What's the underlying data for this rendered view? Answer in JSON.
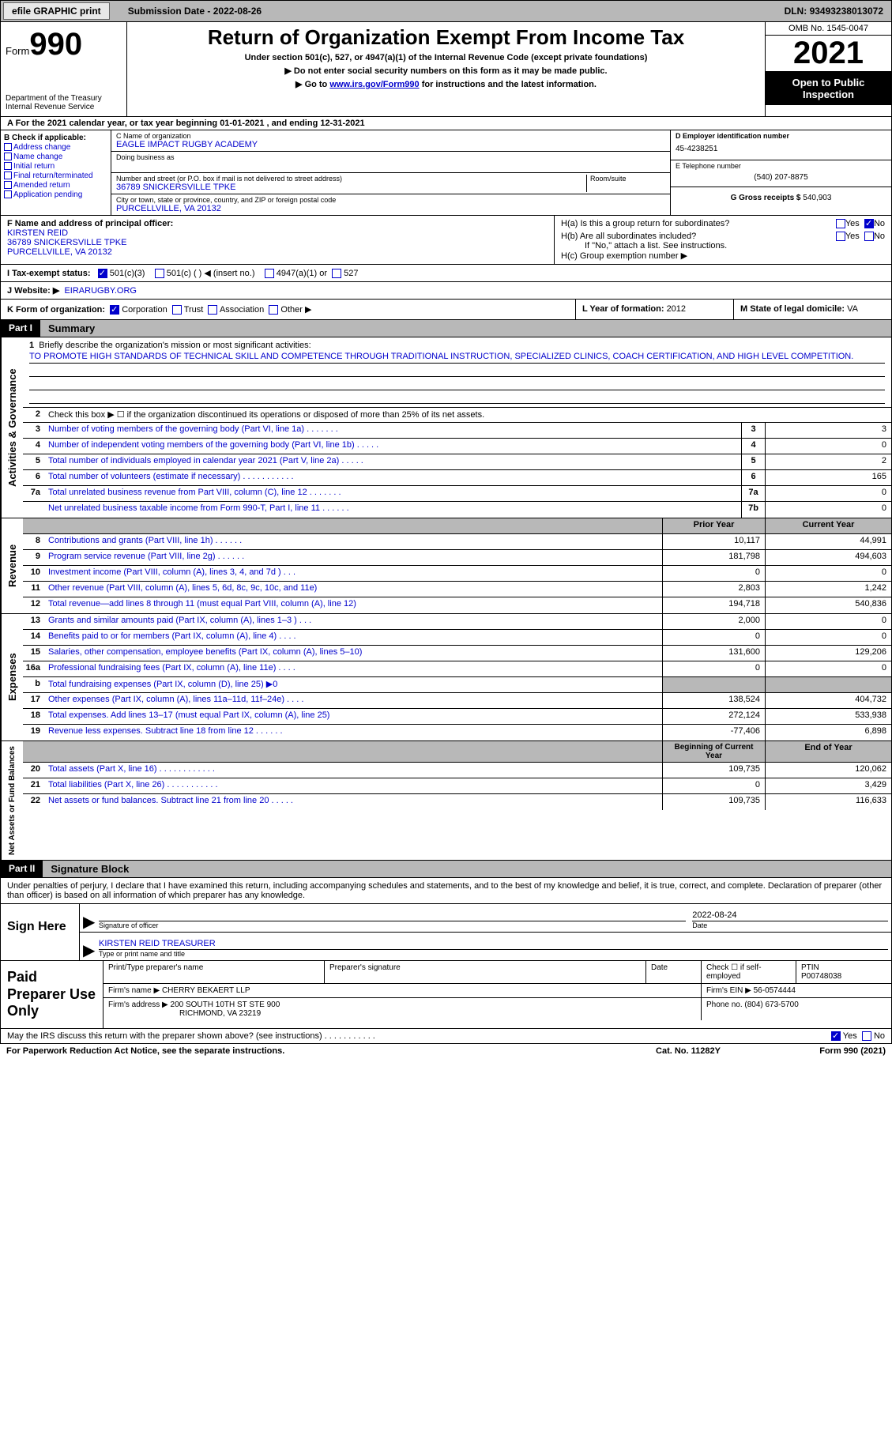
{
  "topbar": {
    "efile_btn": "efile GRAPHIC print",
    "sub_date_label": "Submission Date - ",
    "sub_date": "2022-08-26",
    "dln_label": "DLN: ",
    "dln": "93493238013072"
  },
  "header": {
    "form_label": "Form",
    "form_num": "990",
    "dept": "Department of the Treasury\nInternal Revenue Service",
    "title": "Return of Organization Exempt From Income Tax",
    "sub1": "Under section 501(c), 527, or 4947(a)(1) of the Internal Revenue Code (except private foundations)",
    "sub2": "▶ Do not enter social security numbers on this form as it may be made public.",
    "sub3_pre": "▶ Go to ",
    "sub3_link": "www.irs.gov/Form990",
    "sub3_post": " for instructions and the latest information.",
    "omb": "OMB No. 1545-0047",
    "year": "2021",
    "open_pub": "Open to Public Inspection"
  },
  "line_a": "A   For the 2021 calendar year, or tax year beginning 01-01-2021    , and ending 12-31-2021",
  "col_b": {
    "hdr": "B Check if applicable:",
    "items": [
      "Address change",
      "Name change",
      "Initial return",
      "Final return/terminated",
      "Amended return",
      "Application pending"
    ]
  },
  "col_c": {
    "name_lbl": "C Name of organization",
    "name_val": "EAGLE IMPACT RUGBY ACADEMY",
    "dba_lbl": "Doing business as",
    "addr_lbl": "Number and street (or P.O. box if mail is not delivered to street address)",
    "room_lbl": "Room/suite",
    "addr_val": "36789 SNICKERSVILLE TPKE",
    "city_lbl": "City or town, state or province, country, and ZIP or foreign postal code",
    "city_val": "PURCELLVILLE, VA  20132"
  },
  "col_d": {
    "ein_lbl": "D Employer identification number",
    "ein_val": "45-4238251",
    "tel_lbl": "E Telephone number",
    "tel_val": "(540) 207-8875",
    "gross_lbl": "G Gross receipts $ ",
    "gross_val": "540,903"
  },
  "row_f": {
    "lbl": "F Name and address of principal officer:",
    "name": "KIRSTEN REID",
    "addr1": "36789 SNICKERSVILLE TPKE",
    "addr2": "PURCELLVILLE, VA  20132"
  },
  "row_h": {
    "ha": "H(a)  Is this a group return for subordinates?",
    "hb": "H(b)  Are all subordinates included?",
    "hb_note": "If \"No,\" attach a list. See instructions.",
    "hc": "H(c)  Group exemption number ▶",
    "yes": "Yes",
    "no": "No"
  },
  "row_i": {
    "lbl": "I   Tax-exempt status:",
    "opt1": "501(c)(3)",
    "opt2": "501(c) (  ) ◀ (insert no.)",
    "opt3": "4947(a)(1) or",
    "opt4": "527"
  },
  "row_j": {
    "lbl": "J   Website: ▶",
    "val": "EIRARUGBY.ORG"
  },
  "row_k": {
    "lbl": "K Form of organization:",
    "opts": [
      "Corporation",
      "Trust",
      "Association",
      "Other ▶"
    ]
  },
  "row_l": {
    "lbl": "L Year of formation: ",
    "val": "2012"
  },
  "row_m": {
    "lbl": "M State of legal domicile: ",
    "val": "VA"
  },
  "part1": {
    "hdr": "Part I",
    "title": "Summary",
    "side_gov": "Activities & Governance",
    "side_rev": "Revenue",
    "side_exp": "Expenses",
    "side_net": "Net Assets or Fund Balances",
    "l1_lbl": "Briefly describe the organization's mission or most significant activities:",
    "l1_val": "TO PROMOTE HIGH STANDARDS OF TECHNICAL SKILL AND COMPETENCE THROUGH TRADITIONAL INSTRUCTION, SPECIALIZED CLINICS, COACH CERTIFICATION, AND HIGH LEVEL COMPETITION.",
    "l2": "Check this box ▶ ☐  if the organization discontinued its operations or disposed of more than 25% of its net assets.",
    "rows_gov": [
      {
        "n": "3",
        "d": "Number of voting members of the governing body (Part VI, line 1a)   .    .    .    .    .    .    .",
        "b": "3",
        "v": "3"
      },
      {
        "n": "4",
        "d": "Number of independent voting members of the governing body (Part VI, line 1b)   .    .    .    .    .",
        "b": "4",
        "v": "0"
      },
      {
        "n": "5",
        "d": "Total number of individuals employed in calendar year 2021 (Part V, line 2a)   .    .    .    .    .",
        "b": "5",
        "v": "2"
      },
      {
        "n": "6",
        "d": "Total number of volunteers (estimate if necessary)    .    .    .    .    .    .    .    .    .    .    .",
        "b": "6",
        "v": "165"
      },
      {
        "n": "7a",
        "d": "Total unrelated business revenue from Part VIII, column (C), line 12    .    .    .    .    .    .    .",
        "b": "7a",
        "v": "0"
      },
      {
        "n": "",
        "d": "Net unrelated business taxable income from Form 990-T, Part I, line 11   .    .    .    .    .    .",
        "b": "7b",
        "v": "0"
      }
    ],
    "prior_hdr": "Prior Year",
    "curr_hdr": "Current Year",
    "rows_rev": [
      {
        "n": "8",
        "d": "Contributions and grants (Part VIII, line 1h)   .    .    .    .    .    .",
        "p": "10,117",
        "c": "44,991"
      },
      {
        "n": "9",
        "d": "Program service revenue (Part VIII, line 2g)   .    .    .    .    .    .",
        "p": "181,798",
        "c": "494,603"
      },
      {
        "n": "10",
        "d": "Investment income (Part VIII, column (A), lines 3, 4, and 7d )   .    .    .",
        "p": "0",
        "c": "0"
      },
      {
        "n": "11",
        "d": "Other revenue (Part VIII, column (A), lines 5, 6d, 8c, 9c, 10c, and 11e)",
        "p": "2,803",
        "c": "1,242"
      },
      {
        "n": "12",
        "d": "Total revenue—add lines 8 through 11 (must equal Part VIII, column (A), line 12)",
        "p": "194,718",
        "c": "540,836"
      }
    ],
    "rows_exp": [
      {
        "n": "13",
        "d": "Grants and similar amounts paid (Part IX, column (A), lines 1–3 )   .    .    .",
        "p": "2,000",
        "c": "0"
      },
      {
        "n": "14",
        "d": "Benefits paid to or for members (Part IX, column (A), line 4)   .    .    .    .",
        "p": "0",
        "c": "0"
      },
      {
        "n": "15",
        "d": "Salaries, other compensation, employee benefits (Part IX, column (A), lines 5–10)",
        "p": "131,600",
        "c": "129,206"
      },
      {
        "n": "16a",
        "d": "Professional fundraising fees (Part IX, column (A), line 11e)   .    .    .    .",
        "p": "0",
        "c": "0"
      },
      {
        "n": "b",
        "d": "Total fundraising expenses (Part IX, column (D), line 25) ▶0",
        "p": "",
        "c": "",
        "shaded": true
      },
      {
        "n": "17",
        "d": "Other expenses (Part IX, column (A), lines 11a–11d, 11f–24e)   .    .    .    .",
        "p": "138,524",
        "c": "404,732"
      },
      {
        "n": "18",
        "d": "Total expenses. Add lines 13–17 (must equal Part IX, column (A), line 25)",
        "p": "272,124",
        "c": "533,938"
      },
      {
        "n": "19",
        "d": "Revenue less expenses. Subtract line 18 from line 12   .    .    .    .    .    .",
        "p": "-77,406",
        "c": "6,898"
      }
    ],
    "beg_hdr": "Beginning of Current Year",
    "end_hdr": "End of Year",
    "rows_net": [
      {
        "n": "20",
        "d": "Total assets (Part X, line 16)   .    .    .    .    .    .    .    .    .    .    .    .",
        "p": "109,735",
        "c": "120,062"
      },
      {
        "n": "21",
        "d": "Total liabilities (Part X, line 26)   .    .    .    .    .    .    .    .    .    .    .",
        "p": "0",
        "c": "3,429"
      },
      {
        "n": "22",
        "d": "Net assets or fund balances. Subtract line 21 from line 20   .    .    .    .    .",
        "p": "109,735",
        "c": "116,633"
      }
    ]
  },
  "part2": {
    "hdr": "Part II",
    "title": "Signature Block",
    "decl": "Under penalties of perjury, I declare that I have examined this return, including accompanying schedules and statements, and to the best of my knowledge and belief, it is true, correct, and complete. Declaration of preparer (other than officer) is based on all information of which preparer has any knowledge.",
    "sign_here": "Sign Here",
    "sig_of_officer": "Signature of officer",
    "sig_date": "2022-08-24",
    "date_lbl": "Date",
    "officer_name": "KIRSTEN REID TREASURER",
    "type_name_lbl": "Type or print name and title",
    "paid_prep": "Paid Preparer Use Only",
    "prep_name_lbl": "Print/Type preparer's name",
    "prep_sig_lbl": "Preparer's signature",
    "check_self": "Check ☐ if self-employed",
    "ptin_lbl": "PTIN",
    "ptin_val": "P00748038",
    "firm_name_lbl": "Firm's name    ▶ ",
    "firm_name": "CHERRY BEKAERT LLP",
    "firm_ein_lbl": "Firm's EIN ▶ ",
    "firm_ein": "56-0574444",
    "firm_addr_lbl": "Firm's address ▶ ",
    "firm_addr1": "200 SOUTH 10TH ST STE 900",
    "firm_addr2": "RICHMOND, VA  23219",
    "phone_lbl": "Phone no. ",
    "phone_val": "(804) 673-5700",
    "discuss": "May the IRS discuss this return with the preparer shown above? (see instructions)   .    .    .    .    .    .    .    .    .    .    ."
  },
  "footer": {
    "pra": "For Paperwork Reduction Act Notice, see the separate instructions.",
    "cat": "Cat. No. 11282Y",
    "form": "Form 990 (2021)"
  }
}
